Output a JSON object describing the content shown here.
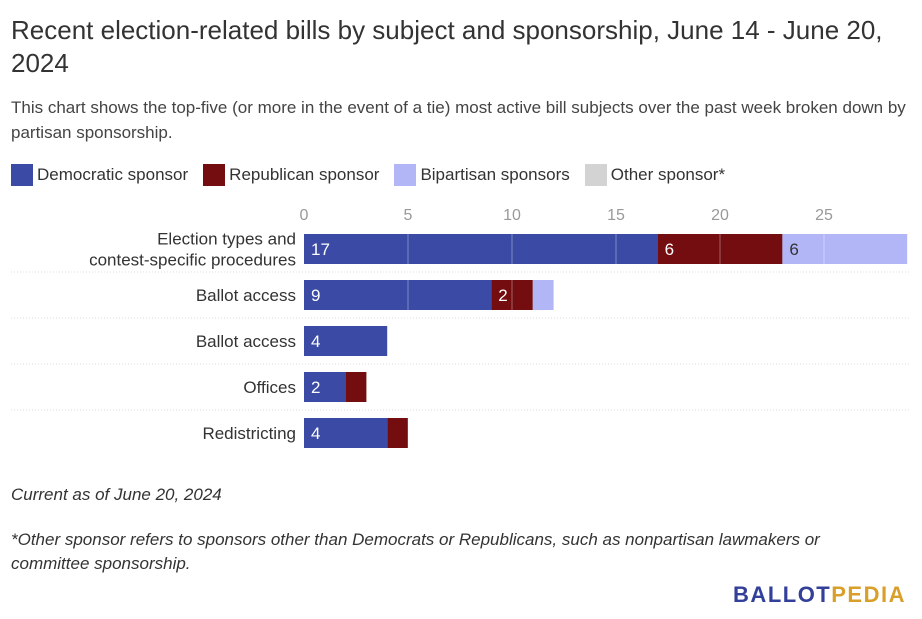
{
  "title": "Recent election-related bills by subject and sponsorship, June 14 - June 20, 2024",
  "subtitle": "This chart shows the top-five (or more in the event of a tie) most active bill subjects over the past week broken down by partisan sponsorship.",
  "legend": [
    {
      "label": "Democratic sponsor",
      "color": "#3a4aa5"
    },
    {
      "label": "Republican sponsor",
      "color": "#730d10"
    },
    {
      "label": "Bipartisan sponsors",
      "color": "#b2b6f7"
    },
    {
      "label": "Other sponsor*",
      "color": "#d3d3d3"
    }
  ],
  "chart_data": {
    "type": "bar",
    "orientation": "horizontal",
    "stacked": true,
    "categories": [
      "Election types and contest-specific procedures",
      "Ballot access",
      "Ballot access",
      "Offices",
      "Redistricting"
    ],
    "series": [
      {
        "name": "Democratic sponsor",
        "color": "#3a4aa5",
        "values": [
          17,
          9,
          4,
          2,
          4
        ]
      },
      {
        "name": "Republican sponsor",
        "color": "#730d10",
        "values": [
          6,
          2,
          0,
          1,
          1
        ]
      },
      {
        "name": "Bipartisan sponsors",
        "color": "#b2b6f7",
        "values": [
          6,
          1,
          0,
          0,
          0
        ]
      },
      {
        "name": "Other sponsor*",
        "color": "#d3d3d3",
        "values": [
          0,
          0,
          0,
          0,
          0
        ]
      }
    ],
    "data_labels": [
      [
        "17",
        "6",
        "6",
        ""
      ],
      [
        "9",
        "2",
        "",
        ""
      ],
      [
        "4",
        "",
        "",
        ""
      ],
      [
        "2",
        "",
        "",
        ""
      ],
      [
        "4",
        "",
        "",
        ""
      ]
    ],
    "xticks": [
      "0",
      "5",
      "10",
      "15",
      "20",
      "25"
    ],
    "xlim": [
      0,
      29
    ],
    "grid": true,
    "legend_position": "top"
  },
  "notes": {
    "date": "Current as of June 20, 2024",
    "footnote": "*Other sponsor refers to sponsors other than Democrats or Republicans, such as nonpartisan lawmakers or committee sponsorship."
  },
  "logo": {
    "part1": "BALLOT",
    "part2": "PEDIA"
  }
}
